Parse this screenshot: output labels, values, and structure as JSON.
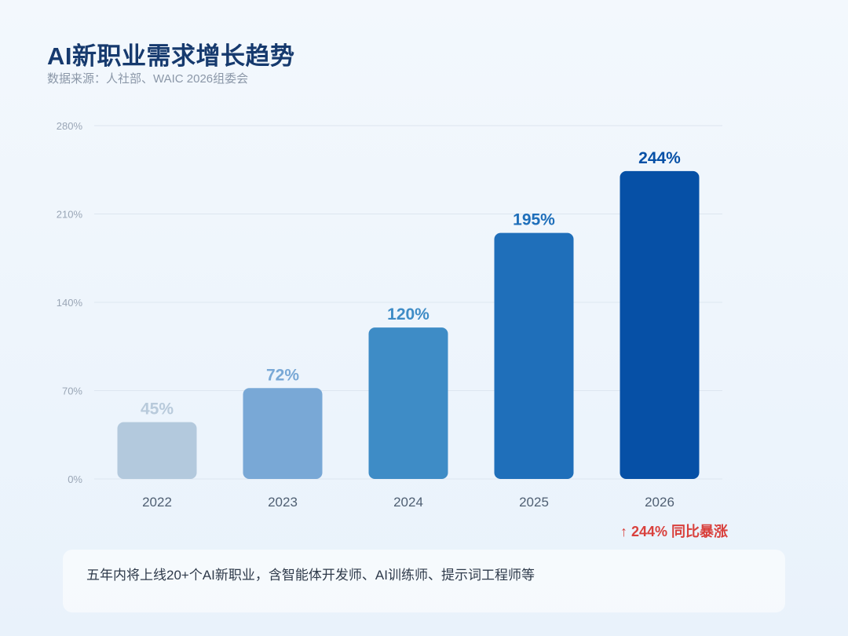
{
  "header": {
    "title": "AI新职业需求增长趋势",
    "subtitle": "数据来源：人社部、WAIC 2026组委会"
  },
  "chart_data": {
    "type": "bar",
    "categories": [
      "2022",
      "2023",
      "2024",
      "2025",
      "2026"
    ],
    "values": [
      45,
      72,
      120,
      195,
      244
    ],
    "data_labels": [
      "45%",
      "72%",
      "120%",
      "195%",
      "244%"
    ],
    "y_ticks": [
      "0%",
      "70%",
      "140%",
      "210%",
      "280%"
    ],
    "ylim": [
      0,
      280
    ],
    "grid": true,
    "bar_colors": [
      "#b3c9dd",
      "#79a8d6",
      "#3e8cc6",
      "#1f6fba",
      "#0650a6"
    ],
    "label_colors": [
      "#b8cadb",
      "#79a8d6",
      "#3e8cc6",
      "#1f6fba",
      "#0650a6"
    ]
  },
  "growth_note": "↑ 244% 同比暴涨",
  "footer_note": "五年内将上线20+个AI新职业，含智能体开发师、AI训练师、提示词工程师等"
}
